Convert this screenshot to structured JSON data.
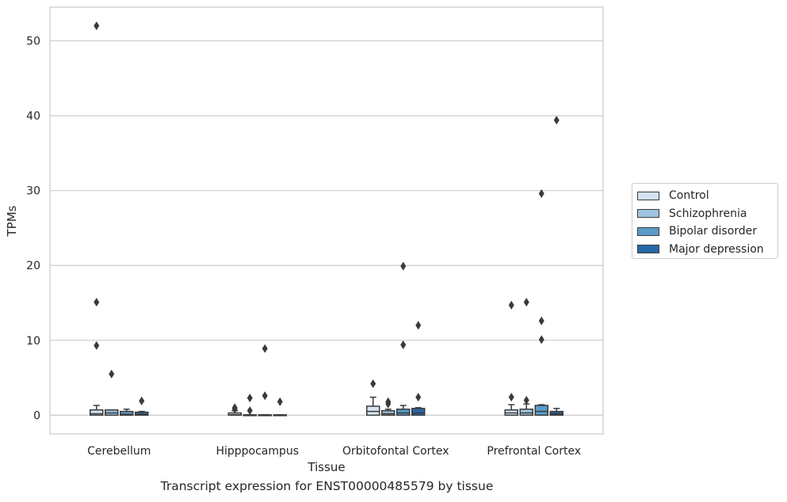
{
  "chart_data": {
    "type": "box",
    "title": "",
    "caption": "Transcript expression for ENST00000485579 by tissue",
    "xlabel": "Tissue",
    "ylabel": "TPMs",
    "ylim": [
      -2.5,
      54.5
    ],
    "yticks": [
      "0",
      "10",
      "20",
      "30",
      "40",
      "50"
    ],
    "categories": [
      "Cerebellum",
      "Hipppocampus",
      "Orbitofontal Cortex",
      "Prefrontal Cortex"
    ],
    "grid": true,
    "legend_position": "right",
    "series": [
      {
        "name": "Control",
        "color": "#d4e3f2",
        "boxes": [
          {
            "q1": 0.0,
            "median": 0.2,
            "q3": 0.7,
            "whisker_low": 0.0,
            "whisker_high": 1.3,
            "outliers": [
              52.0,
              15.1,
              9.3
            ]
          },
          {
            "q1": 0.0,
            "median": 0.05,
            "q3": 0.3,
            "whisker_low": 0.0,
            "whisker_high": 0.6,
            "outliers": [
              1.0,
              0.8
            ]
          },
          {
            "q1": 0.0,
            "median": 0.5,
            "q3": 1.2,
            "whisker_low": 0.0,
            "whisker_high": 2.4,
            "outliers": [
              4.2
            ]
          },
          {
            "q1": 0.0,
            "median": 0.3,
            "q3": 0.7,
            "whisker_low": 0.0,
            "whisker_high": 1.4,
            "outliers": [
              14.7,
              2.4
            ]
          }
        ]
      },
      {
        "name": "Schizophrenia",
        "color": "#a0c4df",
        "boxes": [
          {
            "q1": 0.0,
            "median": 0.3,
            "q3": 0.7,
            "whisker_low": 0.0,
            "whisker_high": 0.7,
            "outliers": [
              5.5
            ]
          },
          {
            "q1": 0.0,
            "median": 0.0,
            "q3": 0.05,
            "whisker_low": 0.0,
            "whisker_high": 0.05,
            "outliers": [
              2.3,
              0.6
            ]
          },
          {
            "q1": 0.0,
            "median": 0.2,
            "q3": 0.6,
            "whisker_low": 0.0,
            "whisker_high": 0.8,
            "outliers": [
              1.8,
              1.5
            ]
          },
          {
            "q1": 0.0,
            "median": 0.3,
            "q3": 0.8,
            "whisker_low": 0.0,
            "whisker_high": 1.5,
            "outliers": [
              15.1,
              2.0
            ]
          }
        ]
      },
      {
        "name": "Bipolar disorder",
        "color": "#5a9cca",
        "boxes": [
          {
            "q1": 0.0,
            "median": 0.1,
            "q3": 0.5,
            "whisker_low": 0.0,
            "whisker_high": 0.8,
            "outliers": []
          },
          {
            "q1": 0.0,
            "median": 0.0,
            "q3": 0.05,
            "whisker_low": 0.0,
            "whisker_high": 0.05,
            "outliers": [
              8.9,
              2.6
            ]
          },
          {
            "q1": 0.0,
            "median": 0.3,
            "q3": 0.8,
            "whisker_low": 0.0,
            "whisker_high": 1.3,
            "outliers": [
              19.9,
              9.4
            ]
          },
          {
            "q1": 0.0,
            "median": 0.5,
            "q3": 1.3,
            "whisker_low": 0.0,
            "whisker_high": 1.4,
            "outliers": [
              29.6,
              12.6,
              10.1
            ]
          }
        ]
      },
      {
        "name": "Major depression",
        "color": "#2669a8",
        "boxes": [
          {
            "q1": 0.0,
            "median": 0.1,
            "q3": 0.4,
            "whisker_low": 0.0,
            "whisker_high": 0.5,
            "outliers": [
              1.9
            ]
          },
          {
            "q1": 0.0,
            "median": 0.0,
            "q3": 0.05,
            "whisker_low": 0.0,
            "whisker_high": 0.05,
            "outliers": [
              1.8
            ]
          },
          {
            "q1": 0.0,
            "median": 0.3,
            "q3": 0.9,
            "whisker_low": 0.0,
            "whisker_high": 1.0,
            "outliers": [
              12.0,
              2.4
            ]
          },
          {
            "q1": 0.0,
            "median": 0.2,
            "q3": 0.5,
            "whisker_low": 0.0,
            "whisker_high": 0.9,
            "outliers": [
              39.4
            ]
          }
        ]
      }
    ]
  }
}
